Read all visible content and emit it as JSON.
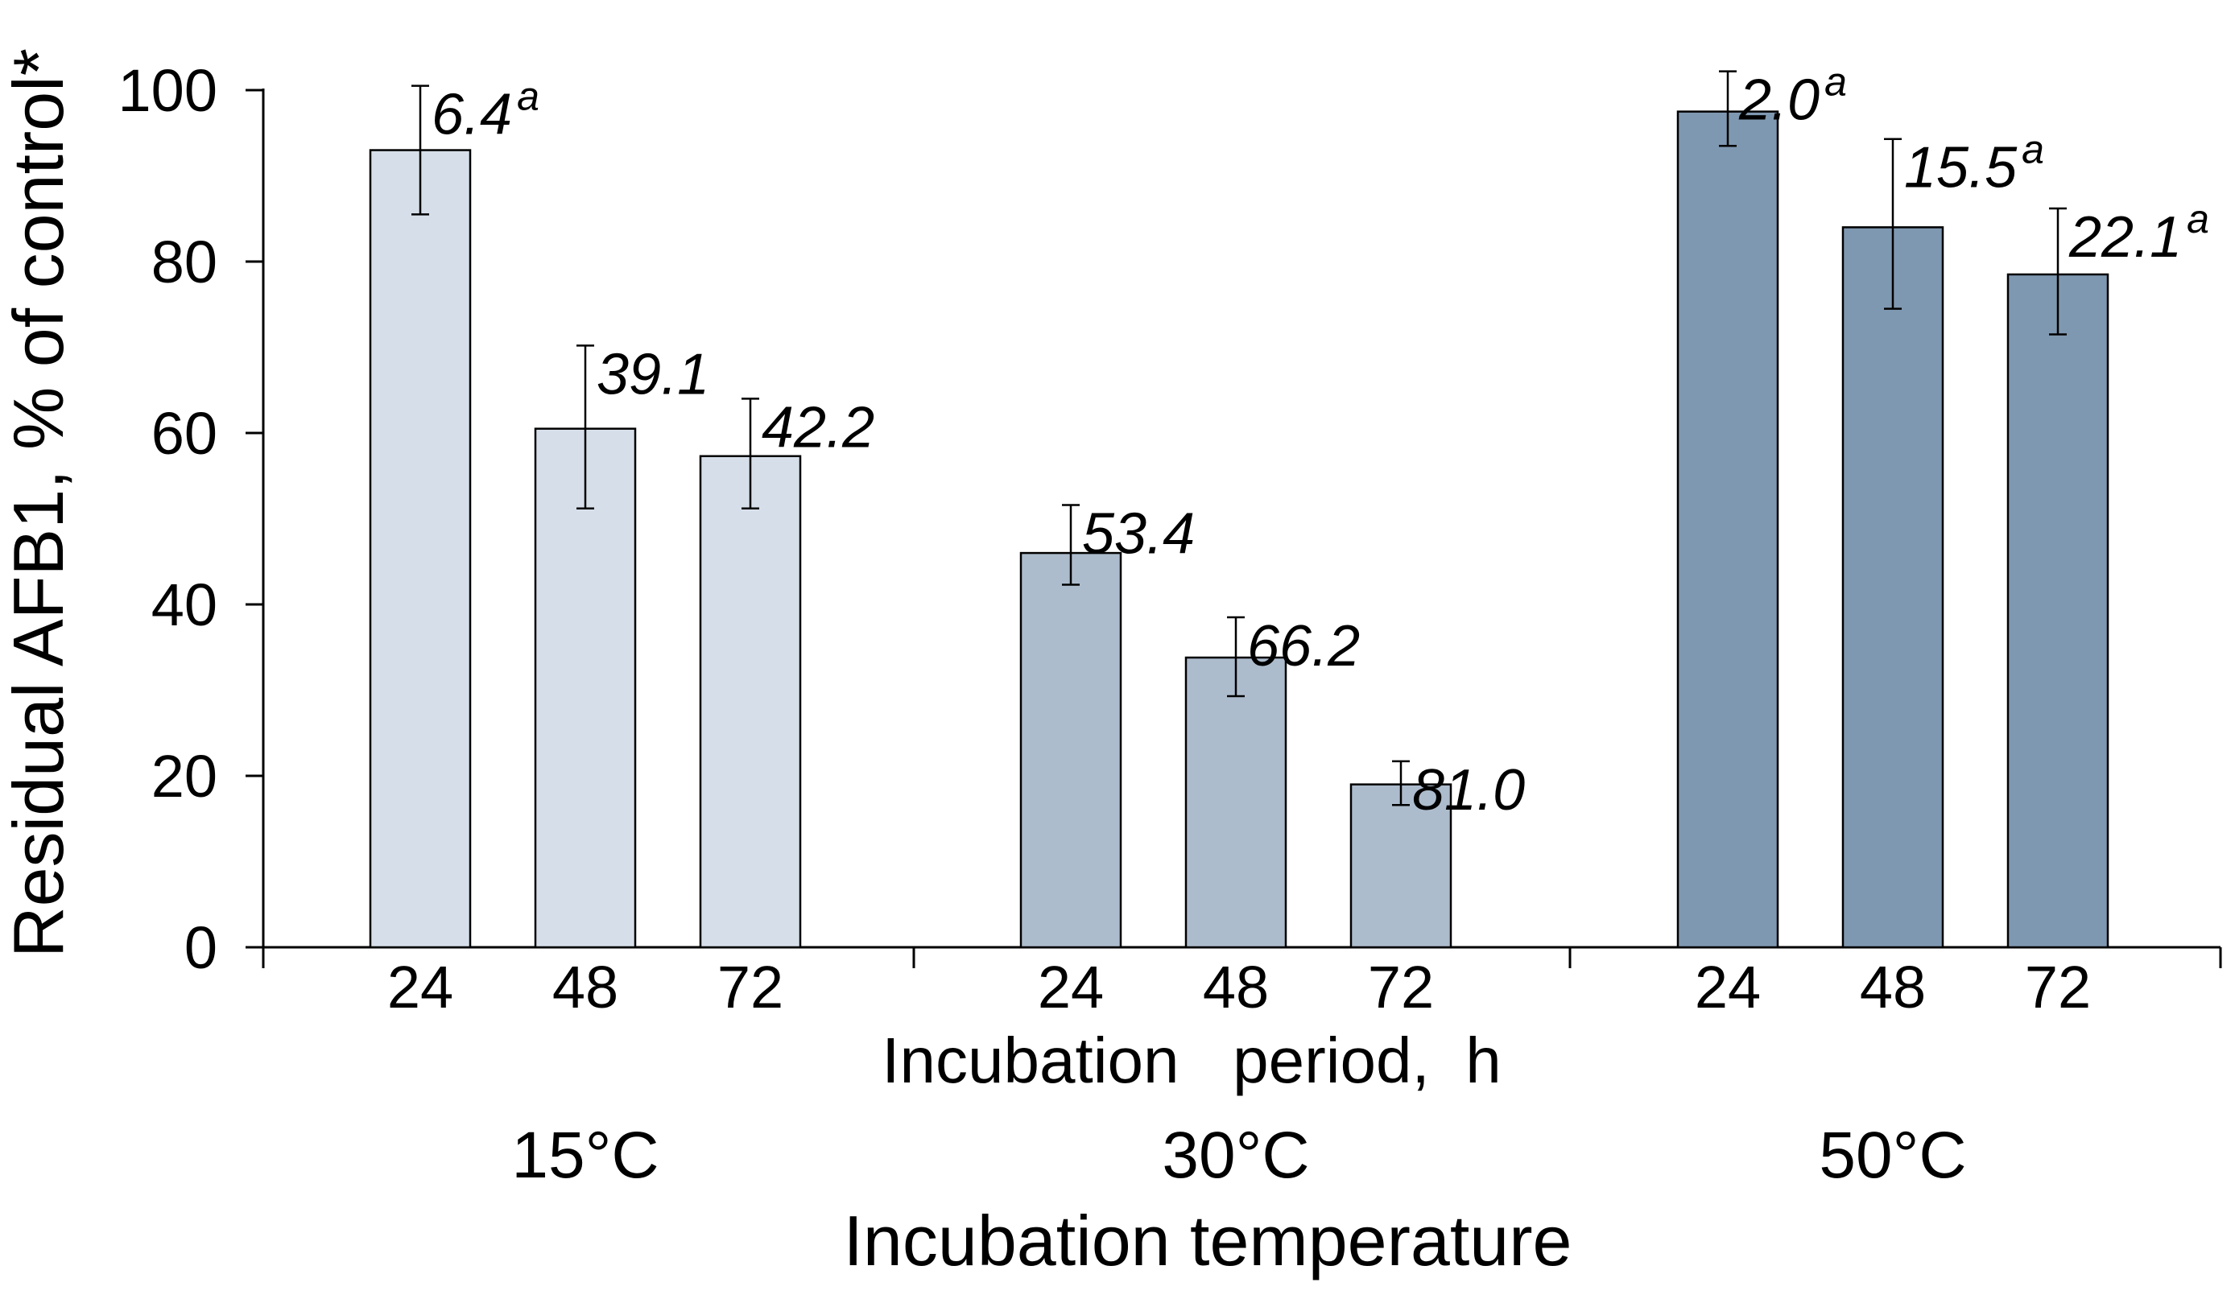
{
  "chart_data": {
    "type": "bar",
    "ylabel": "Residual AFB1, % of control*",
    "xlabel": "Incubation   period,  h",
    "group_axis_title": "Incubation temperature",
    "ylim": [
      0,
      100
    ],
    "yticks": [
      0,
      20,
      40,
      60,
      80,
      100
    ],
    "groups": [
      {
        "name": "15°C",
        "color": "#d6dfe9",
        "categories": [
          "24",
          "48",
          "72"
        ],
        "values": [
          93,
          60.5,
          57.3
        ],
        "error_low": [
          85.5,
          51.2,
          51.2
        ],
        "error_high": [
          100.5,
          70.2,
          64.0
        ],
        "labels": [
          "6.4",
          "39.1",
          "42.2"
        ],
        "superscripts": [
          "a",
          "",
          ""
        ]
      },
      {
        "name": "30°C",
        "color": "#adbccd",
        "categories": [
          "24",
          "48",
          "72"
        ],
        "values": [
          46,
          33.8,
          19
        ],
        "error_low": [
          42.3,
          29.3,
          16.6
        ],
        "error_high": [
          51.6,
          38.5,
          21.7
        ],
        "labels": [
          "53.4",
          "66.2",
          "81.0"
        ],
        "superscripts": [
          "",
          "",
          ""
        ]
      },
      {
        "name": "50°C",
        "color": "#7f98b1",
        "categories": [
          "24",
          "48",
          "72"
        ],
        "values": [
          97.5,
          84,
          78.5
        ],
        "error_low": [
          93.5,
          74.5,
          71.5
        ],
        "error_high": [
          102.2,
          94.3,
          86.2
        ],
        "labels": [
          "2.0",
          "15.5",
          "22.1"
        ],
        "superscripts": [
          "a",
          "a",
          "a"
        ]
      }
    ]
  }
}
